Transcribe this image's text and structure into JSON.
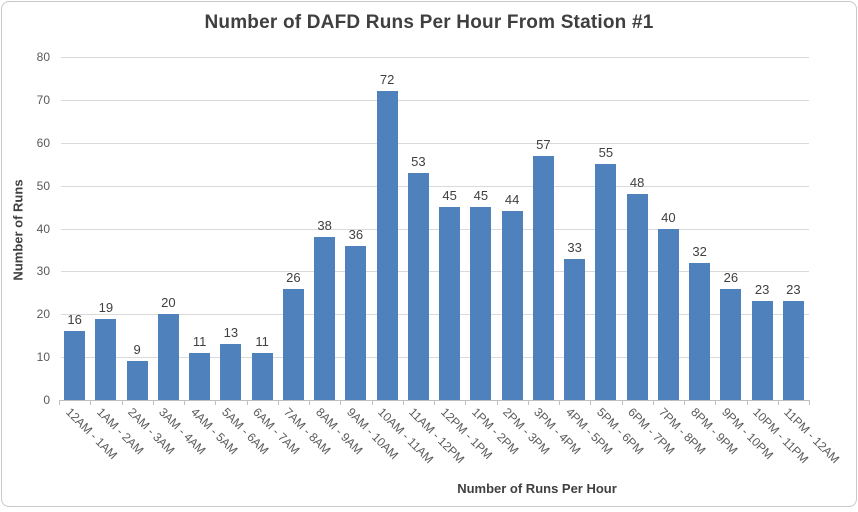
{
  "window": {
    "background": "#ffffff",
    "border_color": "#c9c9c9"
  },
  "chart_data": {
    "type": "bar",
    "title": "Number of DAFD Runs Per Hour From Station #1",
    "xlabel": "Number of Runs Per Hour",
    "ylabel": "Number of Runs",
    "categories": [
      "12AM - 1AM",
      "1AM - 2AM",
      "2AM - 3AM",
      "3AM - 4AM",
      "4AM - 5AM",
      "5AM - 6AM",
      "6AM - 7AM",
      "7AM - 8AM",
      "8AM - 9AM",
      "9AM - 10AM",
      "10AM - 11AM",
      "11AM - 12PM",
      "12PM - 1PM",
      "1PM - 2PM",
      "2PM - 3PM",
      "3PM - 4PM",
      "4PM - 5PM",
      "5PM - 6PM",
      "6PM - 7PM",
      "7PM - 8PM",
      "8PM - 9PM",
      "9PM - 10PM",
      "10PM - 11PM",
      "11PM - 12AM"
    ],
    "values": [
      16,
      19,
      9,
      20,
      11,
      13,
      11,
      26,
      38,
      36,
      72,
      53,
      45,
      45,
      44,
      57,
      33,
      55,
      48,
      40,
      32,
      26,
      23,
      23
    ],
    "ylim": [
      0,
      80
    ],
    "yticks": [
      0,
      10,
      20,
      30,
      40,
      50,
      60,
      70,
      80
    ],
    "grid": true,
    "legend_position": "none",
    "data_labels": true,
    "bar_color": "#4f81bd",
    "value_label_color": "#404040",
    "axis_tick_label_color": "#595959",
    "gridline_color": "#dadada",
    "axis_line_color": "#bfbfbf",
    "title_color": "#3f3f3f"
  }
}
